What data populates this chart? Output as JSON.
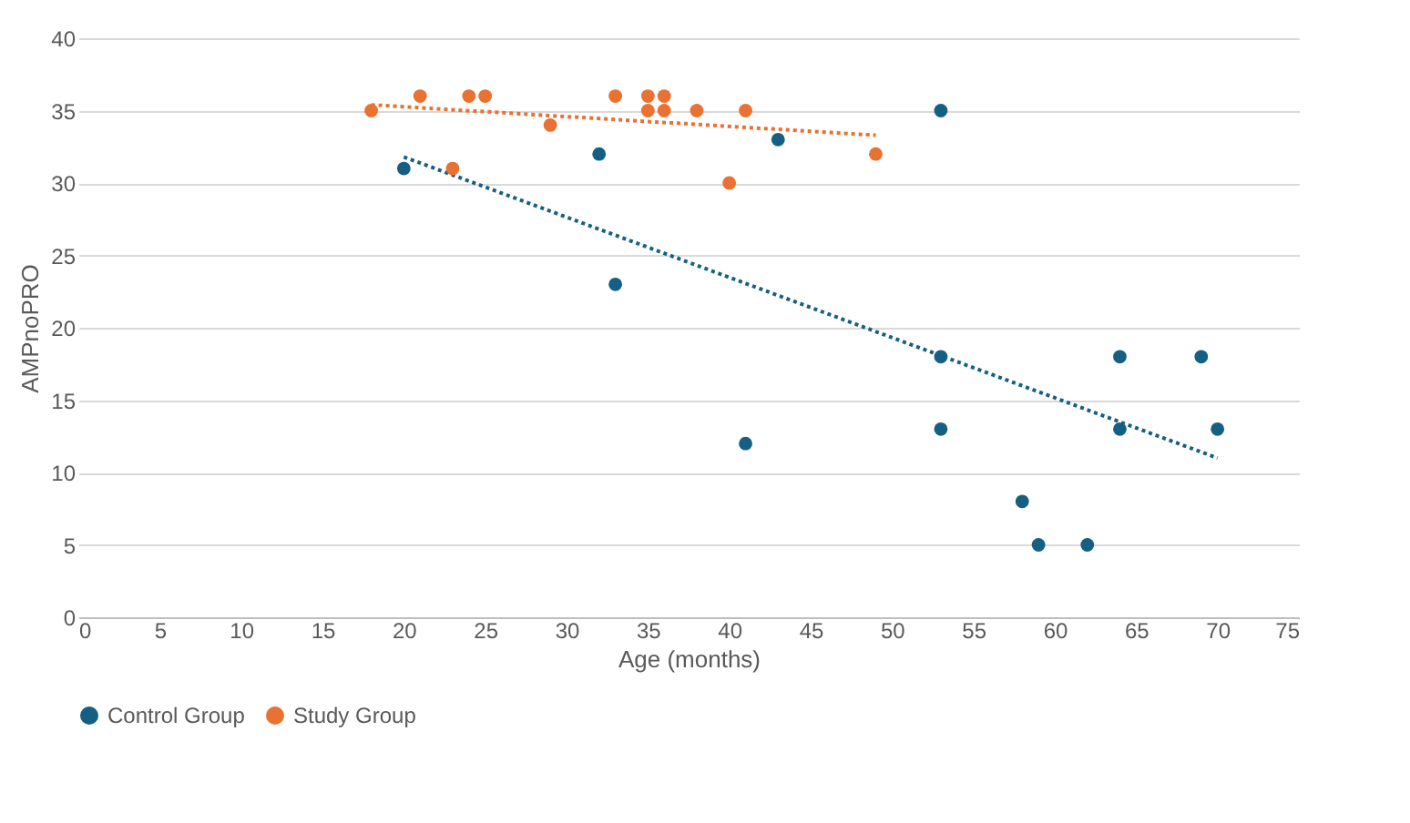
{
  "chart_data": {
    "type": "scatter",
    "xlabel": "Age (months)",
    "ylabel": "AMPnoPRO",
    "xlim": [
      0,
      75
    ],
    "xticks": [
      0,
      5,
      10,
      15,
      20,
      25,
      30,
      35,
      40,
      45,
      50,
      55,
      60,
      65,
      70,
      75
    ],
    "ylim": [
      0,
      40
    ],
    "yticks": [
      0,
      5,
      10,
      15,
      20,
      25,
      30,
      35,
      40
    ],
    "grid": "y",
    "legend": "bottom",
    "marker": "circle",
    "series": [
      {
        "name": "Control Group",
        "color": "#156082",
        "x": [
          20,
          32,
          33,
          41,
          43,
          53,
          53,
          53,
          58,
          59,
          62,
          64,
          64,
          69,
          70
        ],
        "values": [
          31,
          32,
          23,
          12,
          33,
          35,
          18,
          13,
          8,
          5,
          5,
          18,
          13,
          18,
          13
        ]
      },
      {
        "name": "Study Group",
        "color": "#e97132",
        "x": [
          18,
          21,
          23,
          24,
          25,
          29,
          33,
          35,
          35,
          36,
          36,
          38,
          40,
          41,
          49
        ],
        "values": [
          35,
          36,
          31,
          36,
          36,
          34,
          36,
          36,
          35,
          36,
          35,
          35,
          30,
          35,
          32
        ]
      },
      {
        "type": "line",
        "line_style": "dotted",
        "marker": "none",
        "color": "#156082",
        "x": [
          20,
          70
        ],
        "values": [
          31.8,
          11
        ]
      },
      {
        "type": "line",
        "line_style": "dotted",
        "marker": "none",
        "color": "#e97132",
        "x": [
          18,
          49
        ],
        "values": [
          35.4,
          33.3
        ]
      }
    ]
  }
}
